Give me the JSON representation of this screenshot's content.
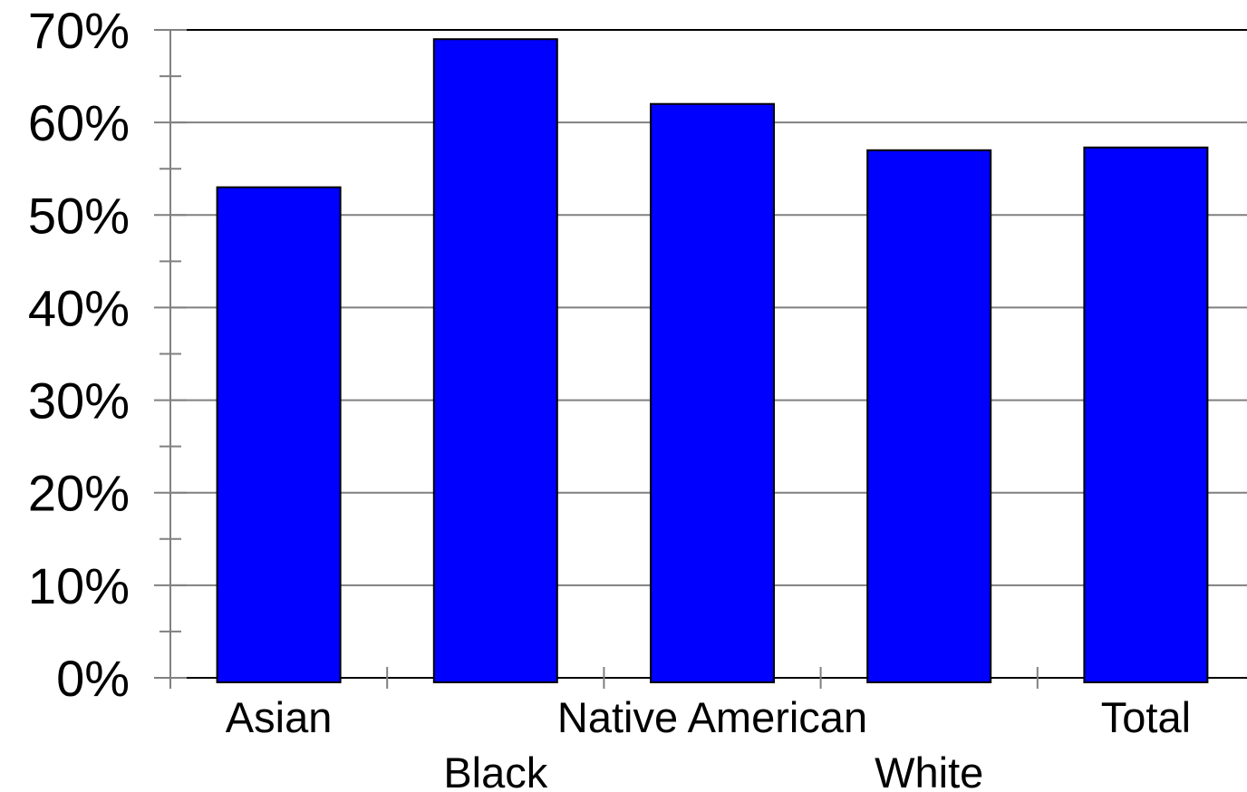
{
  "chart_data": {
    "type": "bar",
    "categories": [
      "Asian",
      "Black",
      "Native American",
      "White",
      "Total"
    ],
    "values": [
      53,
      69,
      62,
      57,
      57.3
    ],
    "ylim": [
      0,
      70
    ],
    "y_ticks": [
      0,
      10,
      20,
      30,
      40,
      50,
      60,
      70
    ],
    "y_tick_labels": [
      "0%",
      "10%",
      "20%",
      "30%",
      "40%",
      "50%",
      "60%",
      "70%"
    ],
    "title": "",
    "xlabel": "",
    "ylabel": "",
    "grid": true,
    "legend": "none",
    "colors": {
      "bar": "#0000ff",
      "bar_outline": "#000000",
      "grid": "#808080",
      "axis": "#808080",
      "frame": "#000000"
    }
  }
}
